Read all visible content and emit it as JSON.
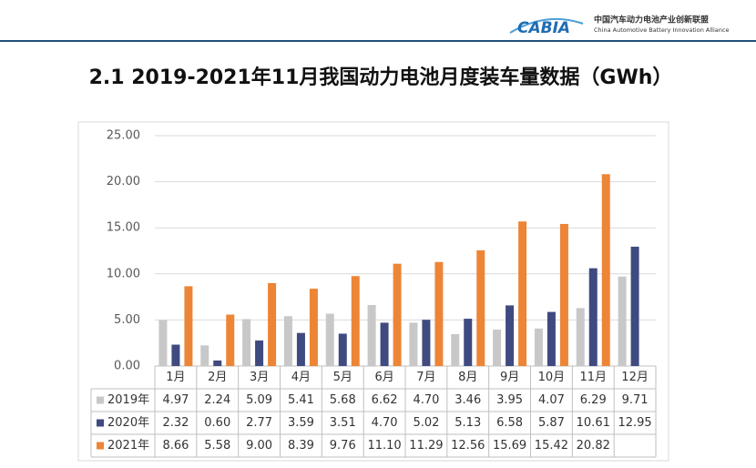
{
  "header": {
    "logo": "CABIA",
    "org_cn": "中国汽车动力电池产业创新联盟",
    "org_en": "China Automotive Battery Innovation Alliance"
  },
  "chart_data": {
    "type": "bar",
    "title": "2.1 2019-2021年11月我国动力电池月度装车量数据（GWh）",
    "categories": [
      "1月",
      "2月",
      "3月",
      "4月",
      "5月",
      "6月",
      "7月",
      "8月",
      "9月",
      "10月",
      "11月",
      "12月"
    ],
    "series": [
      {
        "name": "2019年",
        "color": "#c8c8c8",
        "values": [
          4.97,
          2.24,
          5.09,
          5.41,
          5.68,
          6.62,
          4.7,
          3.46,
          3.95,
          4.07,
          6.29,
          9.71
        ],
        "value_labels": [
          "4.97",
          "2.24",
          "5.09",
          "5.41",
          "5.68",
          "6.62",
          "4.70",
          "3.46",
          "3.95",
          "4.07",
          "6.29",
          "9.71"
        ]
      },
      {
        "name": "2020年",
        "color": "#3f4a80",
        "values": [
          2.32,
          0.6,
          2.77,
          3.59,
          3.51,
          4.7,
          5.02,
          5.13,
          6.58,
          5.87,
          10.61,
          12.95
        ],
        "value_labels": [
          "2.32",
          "0.60",
          "2.77",
          "3.59",
          "3.51",
          "4.70",
          "5.02",
          "5.13",
          "6.58",
          "5.87",
          "10.61",
          "12.95"
        ]
      },
      {
        "name": "2021年",
        "color": "#ed8536",
        "values": [
          8.66,
          5.58,
          9,
          8.39,
          9.76,
          11.1,
          11.29,
          12.56,
          15.69,
          15.42,
          20.82,
          null
        ],
        "value_labels": [
          "8.66",
          "5.58",
          "9.00",
          "8.39",
          "9.76",
          "11.10",
          "11.29",
          "12.56",
          "15.69",
          "15.42",
          "20.82",
          null
        ]
      }
    ],
    "ylim": [
      0,
      25
    ],
    "yticks": [
      {
        "value": 0,
        "label": "0.00"
      },
      {
        "value": 5,
        "label": "5.00"
      },
      {
        "value": 10,
        "label": "10.00"
      },
      {
        "value": 15,
        "label": "15.00"
      },
      {
        "value": 20,
        "label": "20.00"
      },
      {
        "value": 25,
        "label": "25.00"
      }
    ],
    "grid": true
  }
}
